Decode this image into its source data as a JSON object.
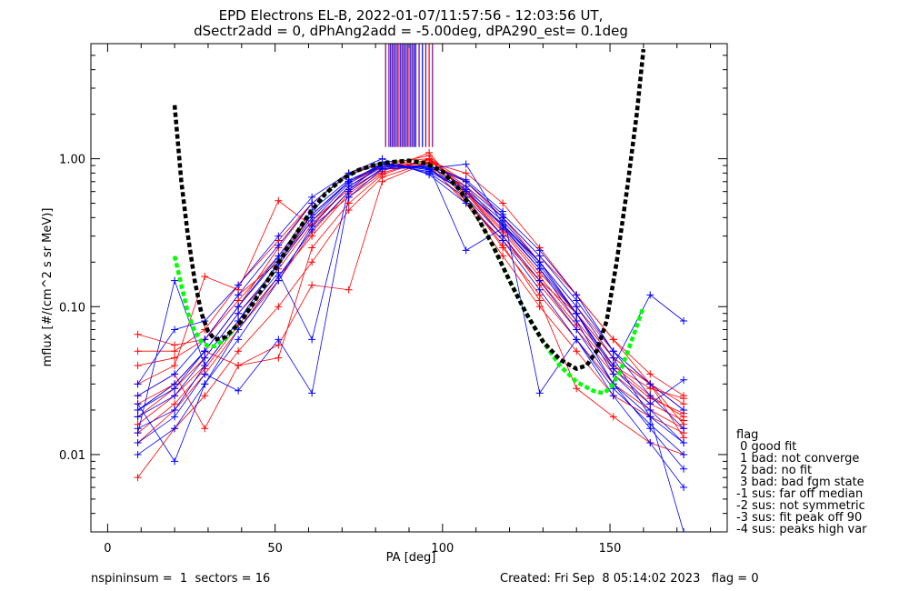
{
  "chart_data": {
    "type": "line",
    "title_line1": "EPD Electrons EL-B, 2022-01-07/11:57:56 - 12:03:56 UT,",
    "title_line2": "dSectr2add = 0, dPhAng2add = -5.00deg, dPA290_est=   0.1deg",
    "xlabel": "PA [deg]",
    "ylabel": "mflux [#/(cm^2 s sr MeV)]",
    "xlim": [
      -5,
      185
    ],
    "ylim": [
      0.003,
      6.0
    ],
    "yscale": "log",
    "x_ticks": [
      0,
      50,
      100,
      150
    ],
    "x_tick_labels": [
      "0",
      "50",
      "100",
      "150"
    ],
    "y_ticks": [
      0.01,
      0.1,
      1.0
    ],
    "y_tick_labels": [
      "0.01",
      "0.10",
      "1.00"
    ],
    "colors": {
      "red": "#ff0000",
      "blue": "#0000ff",
      "black_fit": "#000000",
      "green_fit": "#00ff00",
      "purple": "#800080"
    },
    "black_fit": {
      "x": [
        20,
        22,
        24,
        26,
        28,
        30,
        32,
        35,
        40,
        45,
        50,
        55,
        60,
        65,
        70,
        75,
        80,
        85,
        90,
        95,
        100,
        105,
        110,
        115,
        120,
        125,
        130,
        135,
        140,
        143,
        146,
        149,
        152,
        155,
        158,
        160
      ],
      "y": [
        2.3,
        0.7,
        0.3,
        0.15,
        0.09,
        0.068,
        0.06,
        0.062,
        0.08,
        0.12,
        0.18,
        0.28,
        0.42,
        0.58,
        0.73,
        0.84,
        0.91,
        0.95,
        0.97,
        0.93,
        0.82,
        0.62,
        0.42,
        0.26,
        0.15,
        0.09,
        0.058,
        0.044,
        0.038,
        0.04,
        0.05,
        0.08,
        0.2,
        0.6,
        2.0,
        5.5
      ]
    },
    "green_fit": {
      "x": [
        20,
        22,
        24,
        26,
        28,
        30,
        32,
        35,
        40,
        45,
        50,
        55,
        60,
        65,
        70,
        75,
        80,
        85,
        90,
        95,
        100,
        105,
        110,
        115,
        120,
        125,
        130,
        135,
        140,
        145,
        148,
        150,
        153,
        156,
        160
      ],
      "y": [
        0.22,
        0.14,
        0.09,
        0.068,
        0.058,
        0.054,
        0.054,
        0.06,
        0.08,
        0.12,
        0.18,
        0.28,
        0.42,
        0.58,
        0.73,
        0.84,
        0.91,
        0.95,
        0.97,
        0.93,
        0.82,
        0.62,
        0.42,
        0.26,
        0.15,
        0.09,
        0.058,
        0.04,
        0.031,
        0.027,
        0.026,
        0.028,
        0.036,
        0.055,
        0.1
      ]
    },
    "series": [
      {
        "color": "red",
        "x": [
          9,
          20,
          29,
          39,
          51,
          61,
          72,
          82,
          96,
          107,
          118,
          129,
          140,
          151,
          162,
          172
        ],
        "y": [
          0.065,
          0.055,
          0.06,
          0.12,
          0.2,
          0.38,
          0.62,
          0.85,
          0.88,
          0.52,
          0.28,
          0.15,
          0.09,
          0.04,
          0.028,
          0.024
        ]
      },
      {
        "color": "red",
        "x": [
          9,
          20,
          29,
          39,
          51,
          61,
          72,
          82,
          96,
          107,
          118,
          129,
          140,
          151,
          162,
          172
        ],
        "y": [
          0.016,
          0.025,
          0.04,
          0.08,
          0.2,
          0.42,
          0.7,
          0.9,
          0.92,
          0.55,
          0.25,
          0.12,
          0.06,
          0.03,
          0.02,
          0.015
        ]
      },
      {
        "color": "red",
        "x": [
          9,
          20,
          29,
          39,
          51,
          61,
          72,
          82,
          96,
          107,
          118,
          129,
          140,
          151,
          162,
          172
        ],
        "y": [
          0.022,
          0.03,
          0.05,
          0.1,
          0.25,
          0.5,
          0.8,
          0.95,
          1.0,
          0.6,
          0.32,
          0.16,
          0.08,
          0.04,
          0.025,
          0.018
        ]
      },
      {
        "color": "red",
        "x": [
          9,
          20,
          29,
          39,
          51,
          61,
          72,
          82,
          96,
          107,
          118,
          129,
          140,
          151,
          162,
          172
        ],
        "y": [
          0.012,
          0.02,
          0.035,
          0.07,
          0.15,
          0.32,
          0.6,
          0.85,
          0.98,
          0.65,
          0.35,
          0.2,
          0.1,
          0.05,
          0.03,
          0.02
        ]
      },
      {
        "color": "red",
        "x": [
          9,
          20,
          29,
          39,
          51,
          61,
          72,
          82,
          96,
          107,
          118,
          129,
          140,
          151,
          162,
          172
        ],
        "y": [
          0.04,
          0.045,
          0.06,
          0.11,
          0.22,
          0.42,
          0.7,
          0.88,
          0.9,
          0.5,
          0.22,
          0.1,
          0.05,
          0.025,
          0.018,
          0.014
        ]
      },
      {
        "color": "red",
        "x": [
          9,
          20,
          29,
          39,
          51,
          61,
          72,
          82,
          96,
          107,
          118,
          129,
          140,
          151,
          162,
          172
        ],
        "y": [
          0.03,
          0.04,
          0.16,
          0.13,
          0.52,
          0.35,
          0.55,
          0.8,
          1.0,
          0.7,
          0.4,
          0.2,
          0.09,
          0.045,
          0.03,
          0.022
        ]
      },
      {
        "color": "red",
        "x": [
          9,
          20,
          29,
          39,
          51,
          61,
          72,
          82,
          96,
          107,
          118,
          129,
          140,
          151,
          162,
          172
        ],
        "y": [
          0.007,
          0.015,
          0.025,
          0.05,
          0.1,
          0.2,
          0.45,
          0.75,
          0.95,
          0.7,
          0.4,
          0.22,
          0.12,
          0.06,
          0.03,
          0.016
        ]
      },
      {
        "color": "red",
        "x": [
          9,
          20,
          29,
          39,
          51,
          61,
          72,
          82,
          96,
          107,
          118,
          129,
          140,
          151,
          162,
          172
        ],
        "y": [
          0.018,
          0.028,
          0.045,
          0.09,
          0.18,
          0.36,
          0.65,
          0.9,
          1.05,
          0.6,
          0.3,
          0.14,
          0.07,
          0.035,
          0.022,
          0.017
        ]
      },
      {
        "color": "red",
        "x": [
          9,
          20,
          29,
          39,
          51,
          61,
          72,
          82,
          96,
          107,
          118,
          129,
          140,
          151,
          162,
          172
        ],
        "y": [
          0.025,
          0.035,
          0.015,
          0.04,
          0.055,
          0.14,
          0.13,
          0.7,
          0.95,
          0.8,
          0.5,
          0.25,
          0.12,
          0.06,
          0.035,
          0.025
        ]
      },
      {
        "color": "red",
        "x": [
          9,
          20,
          29,
          39,
          51,
          61,
          72,
          82,
          96,
          107,
          118,
          129,
          140,
          151,
          162,
          172
        ],
        "y": [
          0.014,
          0.022,
          0.038,
          0.075,
          0.16,
          0.3,
          0.58,
          0.82,
          1.1,
          0.55,
          0.26,
          0.11,
          0.028,
          0.018,
          0.012,
          0.01
        ]
      },
      {
        "color": "red",
        "x": [
          9,
          20,
          29,
          39,
          51,
          61,
          72,
          82,
          96,
          107,
          118,
          129,
          140,
          151,
          162,
          172
        ],
        "y": [
          0.05,
          0.05,
          0.07,
          0.14,
          0.28,
          0.5,
          0.78,
          0.92,
          0.93,
          0.58,
          0.3,
          0.15,
          0.075,
          0.038,
          0.024,
          0.019
        ]
      },
      {
        "color": "red",
        "x": [
          9,
          20,
          29,
          39,
          51,
          61,
          72,
          82,
          96,
          107,
          118,
          129,
          140,
          151,
          162,
          172
        ],
        "y": [
          0.02,
          0.03,
          0.05,
          0.04,
          0.045,
          0.25,
          0.5,
          0.78,
          1.0,
          0.62,
          0.33,
          0.17,
          0.09,
          0.045,
          0.03,
          0.013
        ]
      },
      {
        "color": "blue",
        "x": [
          9,
          20,
          29,
          39,
          51,
          61,
          72,
          82,
          96,
          107,
          118,
          129,
          140,
          151,
          162,
          172
        ],
        "y": [
          0.02,
          0.03,
          0.05,
          0.1,
          0.22,
          0.45,
          0.72,
          0.9,
          0.85,
          0.62,
          0.38,
          0.2,
          0.09,
          0.035,
          0.02,
          0.012
        ]
      },
      {
        "color": "blue",
        "x": [
          9,
          20,
          29,
          39,
          51,
          61,
          72,
          82,
          96,
          107,
          118,
          129,
          140,
          151,
          162,
          172
        ],
        "y": [
          0.015,
          0.02,
          0.04,
          0.08,
          0.2,
          0.4,
          0.7,
          0.92,
          0.82,
          0.6,
          0.35,
          0.18,
          0.08,
          0.03,
          0.015,
          0.008
        ]
      },
      {
        "color": "blue",
        "x": [
          9,
          20,
          29,
          39,
          51,
          61,
          72,
          82,
          96,
          107,
          118,
          129,
          140,
          151,
          162,
          172
        ],
        "y": [
          0.01,
          0.015,
          0.03,
          0.06,
          0.15,
          0.35,
          0.65,
          0.88,
          0.9,
          0.7,
          0.42,
          0.24,
          0.12,
          0.05,
          0.025,
          0.015
        ]
      },
      {
        "color": "blue",
        "x": [
          9,
          20,
          29,
          39,
          51,
          61,
          72,
          82,
          96,
          107,
          118,
          129,
          140,
          151,
          162,
          172
        ],
        "y": [
          0.025,
          0.035,
          0.06,
          0.12,
          0.26,
          0.5,
          0.78,
          0.95,
          0.8,
          0.55,
          0.3,
          0.15,
          0.07,
          0.03,
          0.018,
          0.012
        ]
      },
      {
        "color": "blue",
        "x": [
          9,
          20,
          29,
          39,
          51,
          61,
          72,
          82,
          96,
          107,
          118,
          129,
          140,
          151,
          162,
          172
        ],
        "y": [
          0.012,
          0.018,
          0.035,
          0.027,
          0.06,
          0.026,
          0.55,
          0.85,
          0.88,
          0.65,
          0.4,
          0.22,
          0.11,
          0.05,
          0.03,
          0.02
        ]
      },
      {
        "color": "blue",
        "x": [
          9,
          20,
          29,
          39,
          51,
          61,
          72,
          82,
          96,
          107,
          118,
          129,
          140,
          151,
          162,
          172
        ],
        "y": [
          0.03,
          0.07,
          0.08,
          0.14,
          0.3,
          0.55,
          0.8,
          1.0,
          0.78,
          0.5,
          0.28,
          0.13,
          0.06,
          0.028,
          0.016,
          0.01
        ]
      },
      {
        "color": "blue",
        "x": [
          9,
          20,
          29,
          39,
          51,
          61,
          72,
          82,
          96,
          107,
          118,
          129,
          140,
          151,
          162,
          172
        ],
        "y": [
          0.018,
          0.025,
          0.045,
          0.09,
          0.19,
          0.38,
          0.68,
          0.9,
          0.88,
          0.24,
          0.34,
          0.18,
          0.09,
          0.04,
          0.12,
          0.08
        ]
      },
      {
        "color": "blue",
        "x": [
          9,
          20,
          29,
          39,
          51,
          61,
          72,
          82,
          96,
          107,
          118,
          129,
          140,
          151,
          162,
          172
        ],
        "y": [
          0.014,
          0.15,
          0.04,
          0.08,
          0.17,
          0.06,
          0.62,
          0.92,
          0.86,
          0.92,
          0.36,
          0.2,
          0.1,
          0.045,
          0.018,
          0.003
        ]
      },
      {
        "color": "blue",
        "x": [
          9,
          20,
          29,
          39,
          51,
          61,
          72,
          82,
          96,
          107,
          118,
          129,
          140,
          151,
          162,
          172
        ],
        "y": [
          0.022,
          0.009,
          0.03,
          0.07,
          0.16,
          0.33,
          0.6,
          0.86,
          0.9,
          0.72,
          0.44,
          0.026,
          0.06,
          0.025,
          0.012,
          0.006
        ]
      },
      {
        "color": "blue",
        "x": [
          9,
          20,
          29,
          39,
          51,
          61,
          72,
          82,
          96,
          107,
          118,
          129,
          140,
          151,
          162,
          172
        ],
        "y": [
          0.02,
          0.028,
          0.05,
          0.1,
          0.21,
          0.42,
          0.7,
          0.93,
          0.84,
          0.6,
          0.36,
          0.19,
          0.09,
          0.038,
          0.022,
          0.032
        ]
      }
    ],
    "purple_spikes": {
      "x": [
        83,
        84,
        84.5,
        85,
        85.5,
        86,
        86.5,
        87,
        87.5,
        88,
        88.5,
        89,
        89.5,
        90,
        90.5,
        91,
        91.5,
        92,
        93,
        94,
        95,
        96,
        97
      ],
      "colors": [
        "purple",
        "purple",
        "blue",
        "purple",
        "blue",
        "purple",
        "blue",
        "red",
        "blue",
        "purple",
        "blue",
        "purple",
        "blue",
        "red",
        "blue",
        "purple",
        "blue",
        "blue",
        "purple",
        "blue",
        "purple",
        "red",
        "purple"
      ],
      "y_low": 1.2
    }
  },
  "legend": {
    "title": "flag",
    "entries": [
      " 0 good fit",
      " 1 bad: not converge",
      " 2 bad: no fit",
      " 3 bad: bad fgm state",
      "-1 sus: far off median",
      "-2 sus: not symmetric",
      "-3 sus: fit peak off 90",
      "-4 sus: peaks high var"
    ]
  },
  "footer": {
    "left": "nspininsum =  1  sectors = 16",
    "right": "Created: Fri Sep  8 05:14:02 2023   flag = 0"
  }
}
